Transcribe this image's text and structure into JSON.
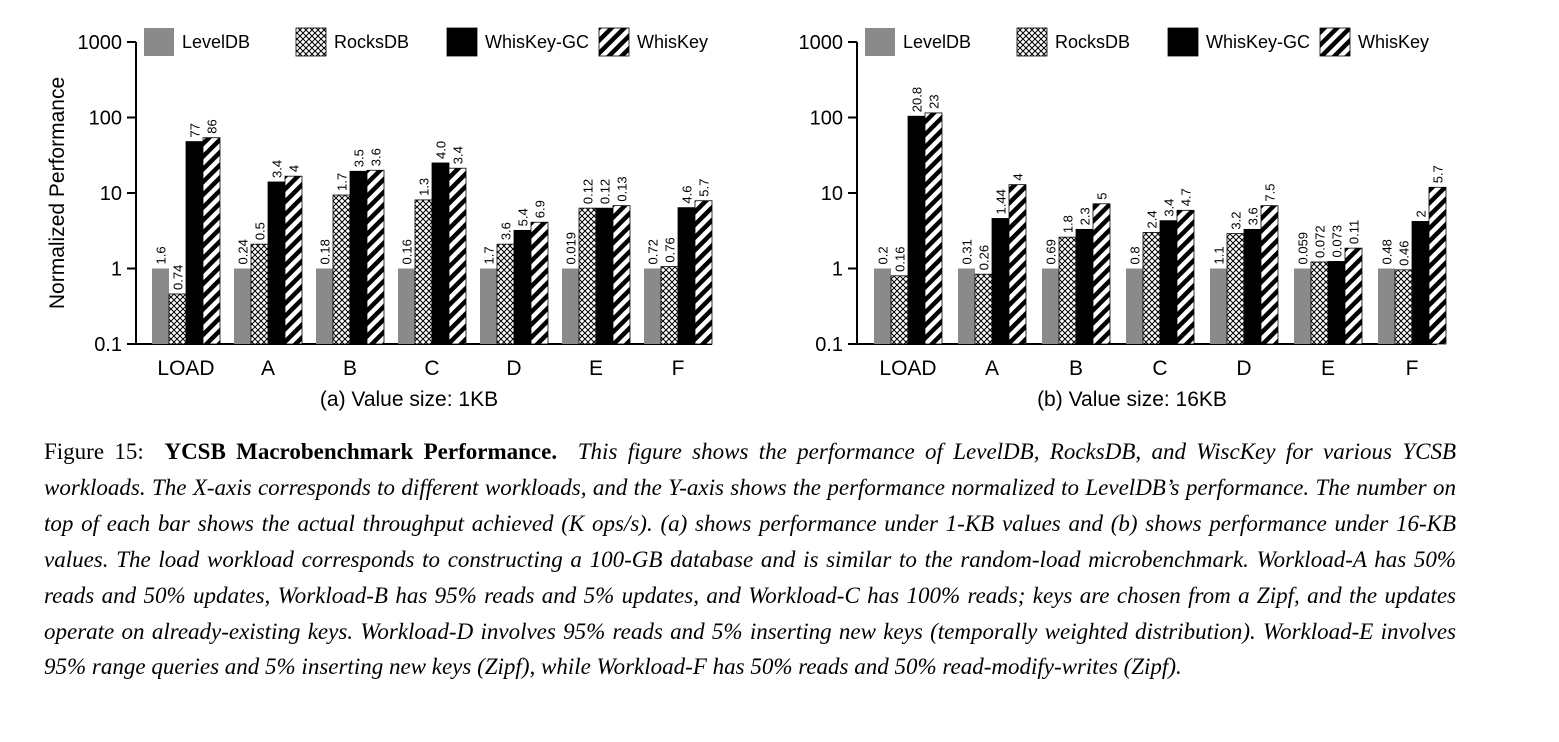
{
  "chart_data": [
    {
      "type": "bar",
      "title": "",
      "subtitle": "(a) Value size: 1KB",
      "xlabel": "",
      "ylabel": "Normalized Performance",
      "yscale": "log",
      "ylim": [
        0.1,
        1000
      ],
      "yticks": [
        "1000",
        "100",
        "10",
        "1",
        "0.1"
      ],
      "grid": false,
      "legend": "top",
      "categories": [
        "LOAD",
        "A",
        "B",
        "C",
        "D",
        "E",
        "F"
      ],
      "series": [
        {
          "name": "LevelDB",
          "pattern": "gray",
          "values": [
            1,
            1,
            1,
            1,
            1,
            1,
            1
          ],
          "labels": [
            "1.6",
            "0.24",
            "0.18",
            "0.16",
            "1.7",
            "0.019",
            "0.72"
          ]
        },
        {
          "name": "RocksDB",
          "pattern": "crosshatch",
          "values": [
            0.46,
            2.1,
            9.4,
            8.1,
            2.1,
            6.3,
            1.06
          ],
          "labels": [
            "0.74",
            "0.5",
            "1.7",
            "1.3",
            "3.6",
            "0.12",
            "0.76"
          ]
        },
        {
          "name": "WhisKey-GC",
          "pattern": "black",
          "values": [
            48,
            14,
            19.4,
            25,
            3.2,
            6.3,
            6.4
          ],
          "labels": [
            "77",
            "3.4",
            "3.5",
            "4.0",
            "5.4",
            "0.12",
            "4.6"
          ]
        },
        {
          "name": "WhisKey",
          "pattern": "diagonal",
          "values": [
            54,
            16.7,
            20,
            21.3,
            4.1,
            6.8,
            7.9
          ],
          "labels": [
            "86",
            "4",
            "3.6",
            "3.4",
            "6.9",
            "0.13",
            "5.7"
          ]
        }
      ]
    },
    {
      "type": "bar",
      "title": "",
      "subtitle": "(b) Value size: 16KB",
      "xlabel": "",
      "ylabel": "",
      "yscale": "log",
      "ylim": [
        0.1,
        1000
      ],
      "yticks": [
        "1000",
        "100",
        "10",
        "1",
        "0.1"
      ],
      "grid": false,
      "legend": "top",
      "categories": [
        "LOAD",
        "A",
        "B",
        "C",
        "D",
        "E",
        "F"
      ],
      "series": [
        {
          "name": "LevelDB",
          "pattern": "gray",
          "values": [
            1,
            1,
            1,
            1,
            1,
            1,
            1
          ],
          "labels": [
            "0.2",
            "0.31",
            "0.69",
            "0.8",
            "1.1",
            "0.059",
            "0.48"
          ]
        },
        {
          "name": "RocksDB",
          "pattern": "crosshatch",
          "values": [
            0.8,
            0.84,
            2.6,
            3,
            2.9,
            1.22,
            0.96
          ],
          "labels": [
            "0.16",
            "0.26",
            "1.8",
            "2.4",
            "3.2",
            "0.072",
            "0.46"
          ]
        },
        {
          "name": "WhisKey-GC",
          "pattern": "black",
          "values": [
            104,
            4.6,
            3.3,
            4.3,
            3.3,
            1.24,
            4.2
          ],
          "labels": [
            "20.8",
            "1.44",
            "2.3",
            "3.4",
            "3.6",
            "0.073",
            "2"
          ]
        },
        {
          "name": "WhisKey",
          "pattern": "diagonal",
          "values": [
            115,
            12.9,
            7.2,
            5.9,
            6.8,
            1.86,
            11.9
          ],
          "labels": [
            "23",
            "4",
            "5",
            "4.7",
            "7.5",
            "0.11",
            "5.7"
          ]
        }
      ]
    }
  ],
  "caption": {
    "label": "Figure 15:",
    "title": "YCSB Macrobenchmark Performance.",
    "text": "This figure shows the performance of LevelDB, RocksDB, and WiscKey for various YCSB workloads. The X-axis corresponds to different workloads, and the Y-axis shows the performance normalized to LevelDB’s performance. The number on top of each bar shows the actual throughput achieved (K ops/s). (a) shows performance under 1-KB values and (b) shows performance under 16-KB values. The load workload corresponds to constructing a 100-GB database and is similar to the random-load microbenchmark. Workload-A has 50% reads and 50% updates, Workload-B has 95% reads and 5% updates, and Workload-C has 100% reads; keys are chosen from a Zipf, and the updates operate on already-existing keys. Workload-D involves 95% reads and 5% inserting new keys (temporally weighted distribution). Workload-E involves 95% range queries and 5% inserting new keys (Zipf), while Workload-F has 50% reads and 50% read-modify-writes (Zipf)."
  }
}
